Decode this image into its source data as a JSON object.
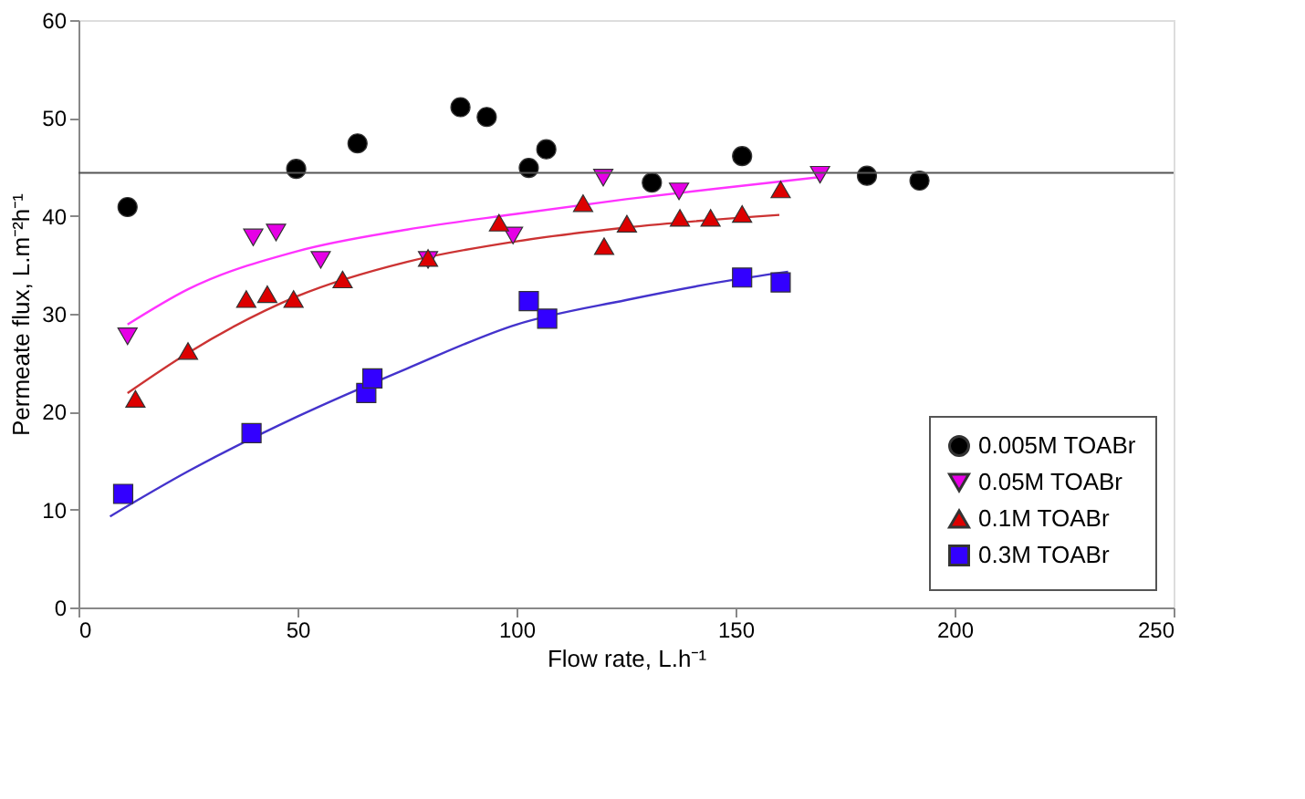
{
  "chart_data": {
    "type": "scatter",
    "xlabel": "Flow rate, L.h⁻¹",
    "ylabel": "Permeate flux, L.m⁻²h⁻¹",
    "xlim": [
      0,
      250
    ],
    "xticks": [
      0,
      50,
      100,
      150,
      200,
      250
    ],
    "ylim": [
      0,
      60
    ],
    "yticks": [
      0,
      10,
      20,
      30,
      40,
      50,
      60
    ],
    "grid": false,
    "legend": "bottom right",
    "series": [
      {
        "name": "0.005M TOABr",
        "marker": "circle",
        "color": "#000000",
        "x": [
          11.2,
          49.7,
          63.7,
          87.2,
          93.2,
          102.8,
          106.8,
          130.9,
          151.5,
          180,
          192
        ],
        "values": [
          40.9,
          44.8,
          47.4,
          51.1,
          50.1,
          44.9,
          46.8,
          43.4,
          46.1,
          44.1,
          43.6
        ]
      },
      {
        "name": "0.05M TOABr",
        "marker": "triangle-down",
        "color": "#e600e6",
        "x": [
          11.2,
          39.9,
          45.1,
          55.3,
          79.8,
          99.2,
          119.8,
          137.1,
          169.3
        ],
        "values": [
          27.7,
          37.8,
          38.3,
          35.5,
          35.5,
          38.0,
          43.9,
          42.5,
          44.2
        ]
      },
      {
        "name": "0.1M TOABr",
        "marker": "triangle-up",
        "color": "#dd0000",
        "x": [
          13,
          25,
          38.3,
          43.1,
          49.1,
          60.3,
          79.8,
          96,
          115.2,
          120,
          125.2,
          137.3,
          144.3,
          151.5,
          160.3
        ],
        "values": [
          21.3,
          26.2,
          31.5,
          32.0,
          31.5,
          33.5,
          35.7,
          39.3,
          41.3,
          36.9,
          39.2,
          39.8,
          39.8,
          40.2,
          42.7
        ]
      },
      {
        "name": "0.3M TOABr",
        "marker": "square",
        "color": "#3300ff",
        "x": [
          10.2,
          39.5,
          65.7,
          67.1,
          102.8,
          107,
          151.5,
          160.3
        ],
        "values": [
          11.6,
          17.8,
          21.9,
          23.4,
          31.3,
          29.5,
          33.7,
          33.2
        ]
      },
      {
        "type": "line",
        "marker": "none",
        "color": "#ff33ff",
        "x": [
          11.2,
          25,
          50,
          75,
          100,
          125,
          150,
          170
        ],
        "values": [
          28.9,
          32.5,
          36.4,
          38.6,
          40.2,
          41.7,
          43.0,
          44.0
        ]
      },
      {
        "type": "line",
        "marker": "none",
        "color": "#cc3333",
        "x": [
          11.2,
          25,
          50,
          75,
          100,
          125,
          160
        ],
        "values": [
          21.9,
          26.0,
          31.8,
          35.3,
          37.4,
          38.8,
          40.1
        ]
      },
      {
        "type": "line",
        "marker": "none",
        "color": "#4433cc",
        "x": [
          7.2,
          25,
          50,
          75,
          100,
          125,
          150,
          162
        ],
        "values": [
          9.3,
          13.9,
          19.5,
          24.4,
          28.9,
          31.4,
          33.5,
          34.3
        ]
      }
    ],
    "ref_lines": [
      {
        "axis": "y",
        "value": 44.4,
        "color": "#555555"
      }
    ]
  }
}
